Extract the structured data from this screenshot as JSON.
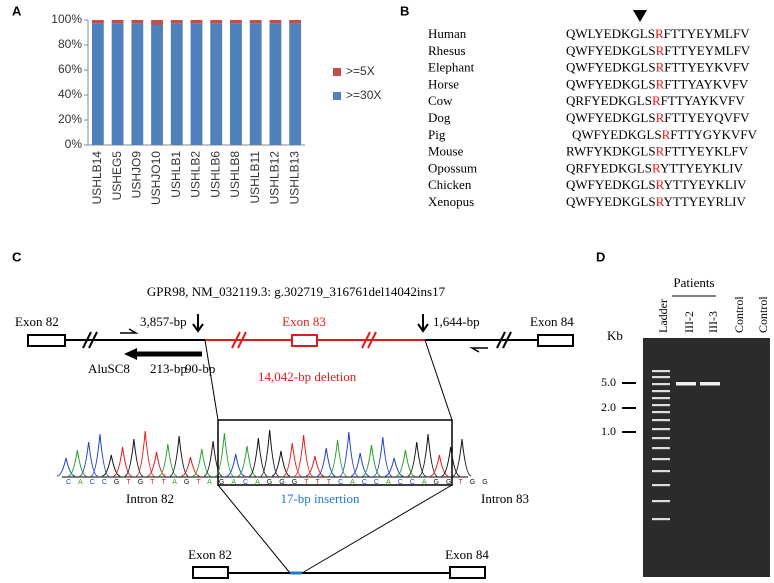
{
  "chart_data": {
    "type": "stacked-bar",
    "panel": "A",
    "categories": [
      "USHLB14",
      "USHEG5",
      "USHJO9",
      "USHJO10",
      "USHLB1",
      "USHLB2",
      "USHLB6",
      "USHLB8",
      "USHLB11",
      "USHLB12",
      "USHLB13"
    ],
    "series": [
      {
        "name": ">=30X",
        "color": "#4f81bd",
        "values": [
          97,
          97,
          97,
          96,
          97,
          97,
          97,
          97,
          97,
          97,
          97
        ]
      },
      {
        "name": ">=5X",
        "color": "#c0504d",
        "values": [
          3,
          3,
          3,
          4,
          3,
          3,
          3,
          3,
          3,
          3,
          3
        ]
      }
    ],
    "ylim": [
      0,
      100
    ],
    "yticks": [
      {
        "value": 0,
        "label": "0%"
      },
      {
        "value": 20,
        "label": "20%"
      },
      {
        "value": 40,
        "label": "40%"
      },
      {
        "value": 60,
        "label": "60%"
      },
      {
        "value": 80,
        "label": "80%"
      },
      {
        "value": 100,
        "label": "100%"
      }
    ],
    "grid": false,
    "legend": "right"
  },
  "alignment": {
    "panel": "B",
    "rows": [
      {
        "species": "Human",
        "before": "QWLYEDKGLS",
        "residue": "R",
        "after": "FTTYEYMLFV"
      },
      {
        "species": "Rhesus",
        "before": "QWFYEDKGLS",
        "residue": "R",
        "after": "FTTYEYMLFV"
      },
      {
        "species": "Elephant",
        "before": "QWFYEDKGLS",
        "residue": "R",
        "after": "FTTYEYKVFV"
      },
      {
        "species": "Horse",
        "before": "QWFYEDKGLS",
        "residue": "R",
        "after": "FTTYAYKVFV"
      },
      {
        "species": "Cow",
        "before": "QRFYEDKGLS",
        "residue": "R",
        "after": "FTTYAYKVFV"
      },
      {
        "species": "Dog",
        "before": "QWFYEDKGLS",
        "residue": "R",
        "after": "FTTYEYQVFV"
      },
      {
        "species": "Pig",
        "before": "QWFYEDKGLS",
        "residue": "R",
        "after": "FTTYGYKVFV"
      },
      {
        "species": "Mouse",
        "before": "RWFYKDKGLS",
        "residue": "R",
        "after": "FTTYEYKLFV"
      },
      {
        "species": "Opossum",
        "before": "QRFYEDKGLS",
        "residue": "R",
        "after": "YTTYEYKLIV"
      },
      {
        "species": "Chicken",
        "before": "QWFYEDKGLS",
        "residue": "R",
        "after": "YTTYEYKLIV"
      },
      {
        "species": "Xenopus",
        "before": "QWFYEDKGLS",
        "residue": "R",
        "after": "YTTYEYRLIV"
      }
    ]
  },
  "diagram": {
    "panel": "C",
    "title": "GPR98,  NM_032119.3: g.302719_316761del14042ins17",
    "exon82": "Exon 82",
    "exon83": "Exon 83",
    "exon84": "Exon 84",
    "left_size": "3,857-bp",
    "right_size": "1,644-bp",
    "alu": "AluSC8",
    "alu_size": "213-bp",
    "alu_gap": "90-bp",
    "deletion": "14,042-bp deletion",
    "sequence": "CACCGTGTTAGTAGACAGGGTTTCACCACCAGGTGG",
    "intron82": "Intron 82",
    "insertion": "17-bp insertion",
    "intron83": "Intron 83",
    "result_exon82": "Exon 82",
    "result_exon84": "Exon 84"
  },
  "gel": {
    "panel": "D",
    "patients": "Patients",
    "lanes": [
      "Ladder",
      "III-2",
      "III-3",
      "Control",
      "Control"
    ],
    "unit": "Kb",
    "markers": [
      "5.0",
      "2.0",
      "1.0"
    ]
  }
}
